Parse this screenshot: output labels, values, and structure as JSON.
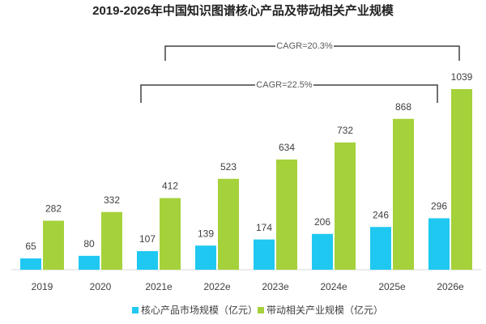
{
  "chart_data": {
    "type": "bar",
    "title": "2019-2026年中国知识图谱核心产品及带动相关产业规模",
    "categories": [
      "2019",
      "2020",
      "2021e",
      "2022e",
      "2023e",
      "2024e",
      "2025e",
      "2026e"
    ],
    "series": [
      {
        "name": "核心产品市场规模（亿元）",
        "color": "#1fc8f1",
        "values": [
          65,
          80,
          107,
          139,
          174,
          206,
          246,
          296
        ]
      },
      {
        "name": "带动相关产业规模（亿元）",
        "color": "#a5d13b",
        "values": [
          282,
          332,
          412,
          523,
          634,
          732,
          868,
          1039
        ]
      }
    ],
    "annotations": [
      "CAGR=20.3%",
      "CAGR=22.5%"
    ]
  }
}
